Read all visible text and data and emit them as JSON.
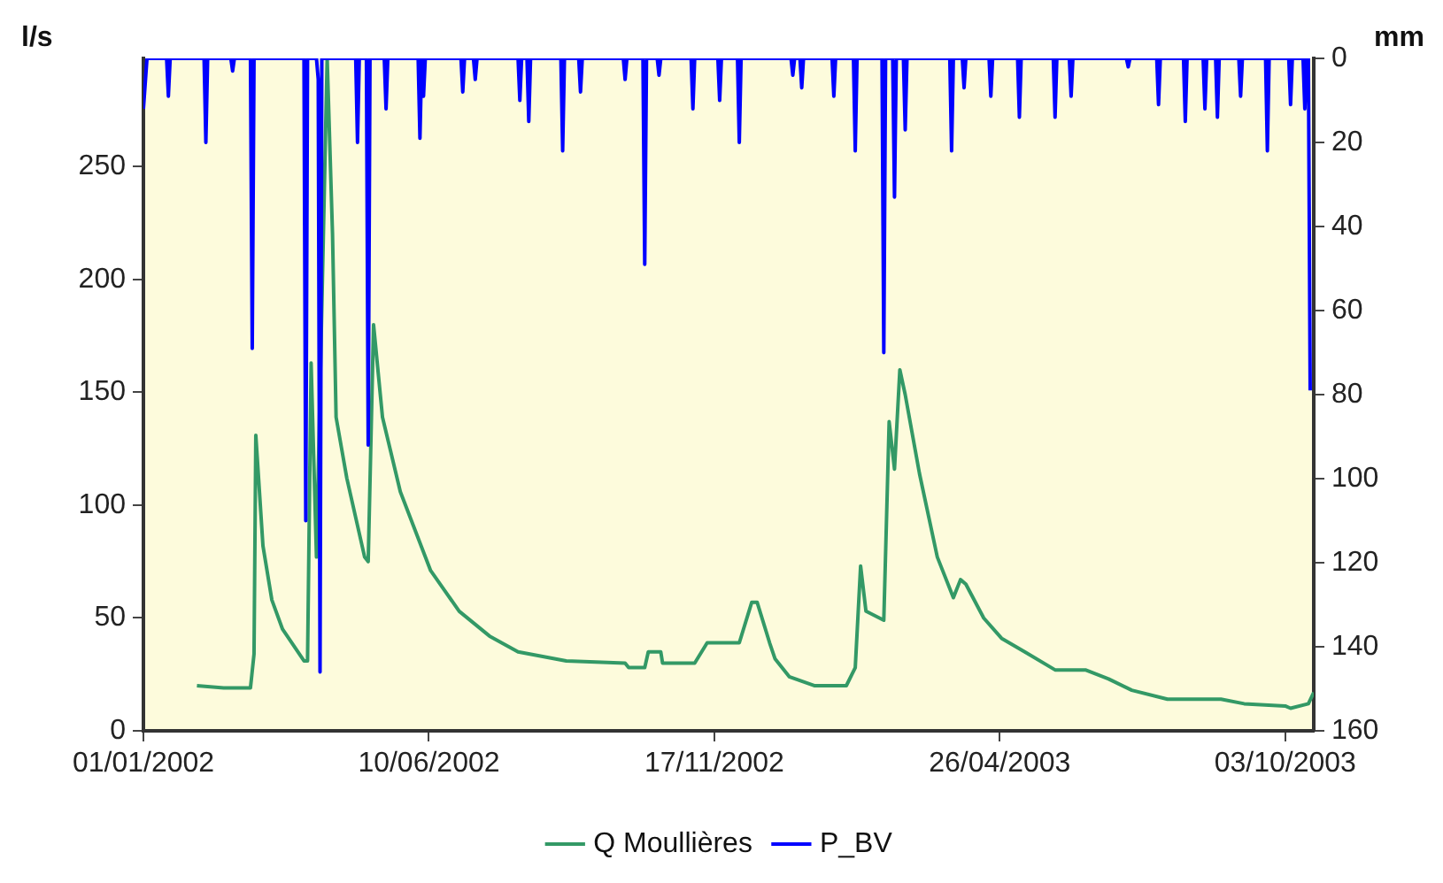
{
  "chart_data": {
    "type": "line",
    "ylabel": "l/s",
    "y2label": "mm",
    "legend": "bottom",
    "grid": false,
    "marker": "none",
    "xlim": [
      "2002-01-01",
      "2003-10-19"
    ],
    "xticks": [
      {
        "value": "2002-01-01",
        "label": "01/01/2002"
      },
      {
        "value": "2002-06-10",
        "label": "10/06/2002"
      },
      {
        "value": "2002-11-17",
        "label": "17/11/2002"
      },
      {
        "value": "2003-04-26",
        "label": "26/04/2003"
      },
      {
        "value": "2003-10-03",
        "label": "03/10/2003"
      }
    ],
    "ylim": [
      0,
      298
    ],
    "yticks": [
      0,
      50,
      100,
      150,
      200,
      250
    ],
    "y2lim": [
      160,
      0
    ],
    "y2ticks": [
      0,
      20,
      40,
      60,
      80,
      100,
      120,
      140,
      160
    ],
    "series": [
      {
        "name": "Q Moullières",
        "color": "#339966",
        "x": [
          "2002-01-31",
          "2002-02-15",
          "2002-03-02",
          "2002-03-04",
          "2002-03-05",
          "2002-03-09",
          "2002-03-14",
          "2002-03-20",
          "2002-04-01",
          "2002-04-03",
          "2002-04-05",
          "2002-04-08",
          "2002-04-14",
          "2002-04-17",
          "2002-04-19",
          "2002-04-25",
          "2002-05-05",
          "2002-05-07",
          "2002-05-10",
          "2002-05-15",
          "2002-05-25",
          "2002-06-11",
          "2002-06-27",
          "2002-07-14",
          "2002-07-30",
          "2002-08-26",
          "2002-09-28",
          "2002-09-30",
          "2002-10-09",
          "2002-10-11",
          "2002-10-18",
          "2002-10-19",
          "2002-11-06",
          "2002-11-13",
          "2002-12-01",
          "2002-12-08",
          "2002-12-11",
          "2002-12-18",
          "2002-12-21",
          "2002-12-29",
          "2003-01-12",
          "2003-01-30",
          "2003-02-04",
          "2003-02-07",
          "2003-02-10",
          "2003-02-20",
          "2003-02-23",
          "2003-02-26",
          "2003-03-01",
          "2003-03-04",
          "2003-03-12",
          "2003-03-22",
          "2003-03-31",
          "2003-04-04",
          "2003-04-07",
          "2003-04-17",
          "2003-04-27",
          "2003-05-10",
          "2003-05-27",
          "2003-06-13",
          "2003-06-26",
          "2003-07-09",
          "2003-07-29",
          "2003-08-28",
          "2003-09-10",
          "2003-10-03",
          "2003-10-06",
          "2003-10-16",
          "2003-10-19"
        ],
        "values": [
          20,
          19,
          19,
          34,
          131,
          82,
          58,
          45,
          31,
          31,
          163,
          77,
          298,
          220,
          139,
          112,
          77,
          75,
          180,
          139,
          106,
          71,
          53,
          42,
          35,
          31,
          30,
          28,
          28,
          35,
          35,
          30,
          30,
          39,
          39,
          57,
          57,
          39,
          32,
          24,
          20,
          20,
          28,
          73,
          53,
          49,
          137,
          116,
          160,
          149,
          114,
          77,
          59,
          67,
          65,
          50,
          41,
          35,
          27,
          27,
          23,
          18,
          14,
          14,
          12,
          11,
          10,
          12,
          17
        ]
      },
      {
        "name": "P_BV",
        "color": "#0000ff",
        "axis": "y2",
        "x": [
          "2002-01-01",
          "2002-01-03",
          "2002-01-14",
          "2002-01-15",
          "2002-01-16",
          "2002-02-04",
          "2002-02-05",
          "2002-02-06",
          "2002-02-19",
          "2002-02-20",
          "2002-02-21",
          "2002-03-02",
          "2002-03-03",
          "2002-03-04",
          "2002-04-01",
          "2002-04-02",
          "2002-04-03",
          "2002-04-08",
          "2002-04-09",
          "2002-04-10",
          "2002-04-11",
          "2002-04-30",
          "2002-05-01",
          "2002-05-02",
          "2002-05-06",
          "2002-05-07",
          "2002-05-08",
          "2002-05-16",
          "2002-05-17",
          "2002-05-18",
          "2002-06-04",
          "2002-06-05",
          "2002-06-06",
          "2002-06-07",
          "2002-06-08",
          "2002-06-28",
          "2002-06-29",
          "2002-06-30",
          "2002-07-05",
          "2002-07-06",
          "2002-07-07",
          "2002-07-30",
          "2002-07-31",
          "2002-08-01",
          "2002-08-04",
          "2002-08-05",
          "2002-08-06",
          "2002-08-23",
          "2002-08-24",
          "2002-08-25",
          "2002-09-02",
          "2002-09-03",
          "2002-09-04",
          "2002-09-27",
          "2002-09-28",
          "2002-09-29",
          "2002-10-08",
          "2002-10-09",
          "2002-10-10",
          "2002-10-16",
          "2002-10-17",
          "2002-10-18",
          "2002-11-04",
          "2002-11-05",
          "2002-11-06",
          "2002-11-19",
          "2002-11-20",
          "2002-11-21",
          "2002-11-30",
          "2002-12-01",
          "2002-12-02",
          "2002-12-30",
          "2002-12-31",
          "2003-01-01",
          "2003-01-04",
          "2003-01-05",
          "2003-01-06",
          "2003-01-22",
          "2003-01-23",
          "2003-01-24",
          "2003-02-03",
          "2003-02-04",
          "2003-02-05",
          "2003-02-19",
          "2003-02-20",
          "2003-02-21",
          "2003-02-25",
          "2003-02-26",
          "2003-02-27",
          "2003-03-03",
          "2003-03-04",
          "2003-03-05",
          "2003-03-29",
          "2003-03-30",
          "2003-03-31",
          "2003-04-05",
          "2003-04-06",
          "2003-04-07",
          "2003-04-20",
          "2003-04-21",
          "2003-04-22",
          "2003-05-06",
          "2003-05-07",
          "2003-05-08",
          "2003-05-26",
          "2003-05-27",
          "2003-05-28",
          "2003-06-04",
          "2003-06-05",
          "2003-06-06",
          "2003-07-06",
          "2003-07-07",
          "2003-07-08",
          "2003-07-23",
          "2003-07-24",
          "2003-07-25",
          "2003-08-07",
          "2003-08-08",
          "2003-08-09",
          "2003-08-18",
          "2003-08-19",
          "2003-08-20",
          "2003-08-25",
          "2003-08-26",
          "2003-08-27",
          "2003-09-07",
          "2003-09-08",
          "2003-09-09",
          "2003-09-22",
          "2003-09-23",
          "2003-09-24",
          "2003-10-05",
          "2003-10-06",
          "2003-10-07",
          "2003-10-13",
          "2003-10-14",
          "2003-10-15",
          "2003-10-16",
          "2003-10-17"
        ],
        "values": [
          12,
          0,
          0,
          9,
          0,
          0,
          20,
          0,
          0,
          3,
          0,
          0,
          69,
          0,
          0,
          110,
          0,
          0,
          5,
          146,
          0,
          0,
          20,
          0,
          0,
          92,
          0,
          0,
          12,
          0,
          0,
          19,
          0,
          9,
          0,
          0,
          8,
          0,
          0,
          5,
          0,
          0,
          10,
          0,
          0,
          15,
          0,
          0,
          22,
          0,
          0,
          8,
          0,
          0,
          5,
          0,
          0,
          49,
          0,
          0,
          4,
          0,
          0,
          12,
          0,
          0,
          10,
          0,
          0,
          20,
          0,
          0,
          4,
          0,
          0,
          7,
          0,
          0,
          9,
          0,
          0,
          22,
          0,
          0,
          70,
          0,
          0,
          33,
          0,
          0,
          17,
          0,
          0,
          22,
          0,
          0,
          7,
          0,
          0,
          9,
          0,
          0,
          14,
          0,
          0,
          14,
          0,
          0,
          9,
          0,
          0,
          2,
          0,
          0,
          11,
          0,
          0,
          15,
          0,
          0,
          12,
          0,
          0,
          14,
          0,
          0,
          9,
          0,
          0,
          22,
          0,
          0,
          11,
          0,
          0,
          12,
          0,
          0,
          79
        ]
      }
    ]
  }
}
